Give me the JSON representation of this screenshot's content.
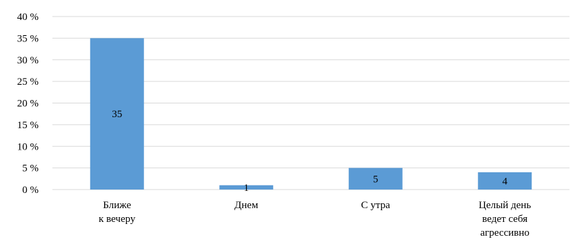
{
  "chart_data": {
    "type": "bar",
    "categories": [
      [
        "Ближе",
        "к вечеру"
      ],
      [
        "Днем"
      ],
      [
        "С утра"
      ],
      [
        "Целый день",
        "ведет себя",
        "агрессивно"
      ]
    ],
    "values": [
      35,
      1,
      5,
      4
    ],
    "data_labels": [
      "35",
      "1",
      "5",
      "4"
    ],
    "y_ticks": [
      "0 %",
      "5 %",
      "10 %",
      "15 %",
      "20 %",
      "25 %",
      "30 %",
      "35 %",
      "40 %"
    ],
    "ylim": [
      0,
      40
    ],
    "grid": true,
    "bar_color": "#5B9BD5",
    "grid_color": "#D9D9D9"
  }
}
